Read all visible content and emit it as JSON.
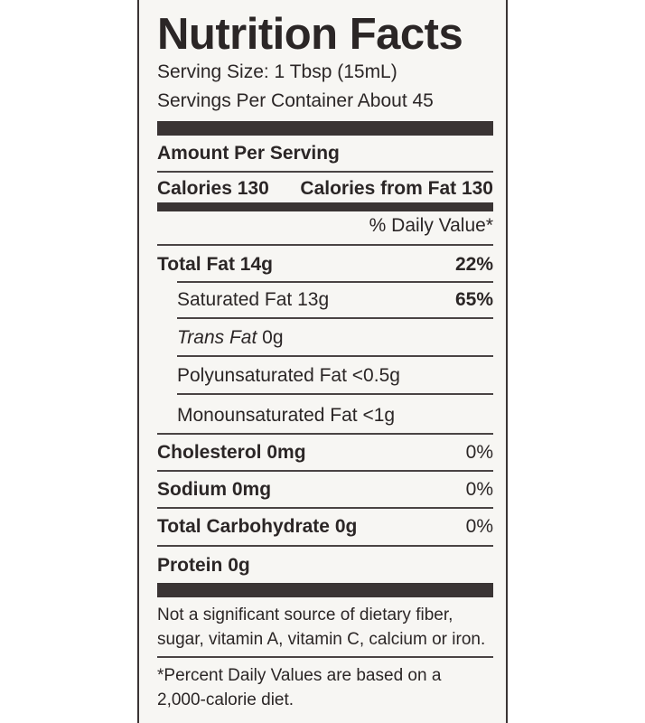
{
  "title": "Nutrition Facts",
  "serving_size": "Serving Size: 1 Tbsp (15mL)",
  "servings_per_container": "Servings Per Container About 45",
  "amount_per_serving": "Amount Per Serving",
  "calories": "Calories 130",
  "calories_from_fat": "Calories from Fat 130",
  "daily_value_header": "% Daily Value*",
  "nutrients": [
    {
      "label": "Total Fat",
      "amount": "14g",
      "dv": "22%"
    },
    {
      "label": "Saturated Fat",
      "amount": "13g",
      "dv": "65%"
    },
    {
      "label": "Trans Fat",
      "amount": "0g",
      "dv": ""
    },
    {
      "label": "Polyunsaturated Fat",
      "amount": "<0.5g",
      "dv": ""
    },
    {
      "label": "Monounsaturated Fat",
      "amount": "<1g",
      "dv": ""
    },
    {
      "label": "Cholesterol",
      "amount": "0mg",
      "dv": "0%"
    },
    {
      "label": "Sodium",
      "amount": "0mg",
      "dv": "0%"
    },
    {
      "label": "Total Carbohydrate",
      "amount": "0g",
      "dv": "0%"
    },
    {
      "label": "Protein",
      "amount": "0g",
      "dv": ""
    }
  ],
  "footnote_1": "Not a significant source of dietary fiber, sugar, vitamin A, vitamin C, calcium or iron.",
  "footnote_2": "*Percent Daily Values are based on a 2,000-calorie diet."
}
